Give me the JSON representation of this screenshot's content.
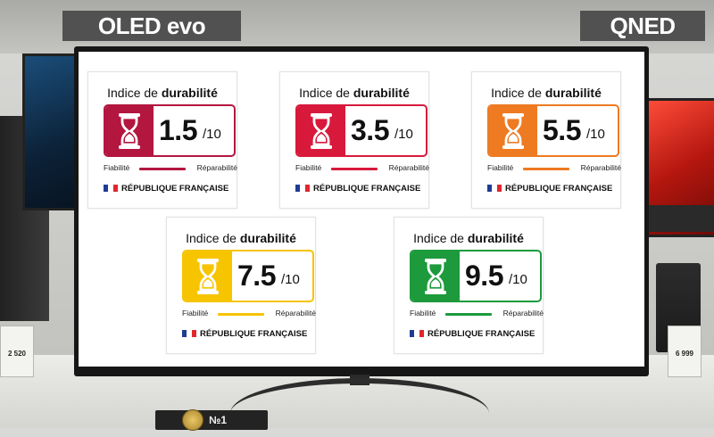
{
  "store": {
    "sign_left": "OLED evo",
    "sign_right": "QNED",
    "price_left": "2 520",
    "price_right": "6 999",
    "badge": "№1"
  },
  "labels": [
    {
      "title_prefix": "Indice de ",
      "title_bold": "durabilité",
      "score": "1.5",
      "scale": "/10",
      "color": "#b3163f",
      "left_text": "Fiabilité",
      "right_text": "Réparabilité",
      "footer": "RÉPUBLIQUE FRANÇAISE"
    },
    {
      "title_prefix": "Indice de ",
      "title_bold": "durabilité",
      "score": "3.5",
      "scale": "/10",
      "color": "#d8193c",
      "left_text": "Fiabilité",
      "right_text": "Réparabilité",
      "footer": "RÉPUBLIQUE FRANÇAISE"
    },
    {
      "title_prefix": "Indice de ",
      "title_bold": "durabilité",
      "score": "5.5",
      "scale": "/10",
      "color": "#ee7a22",
      "left_text": "Fiabilité",
      "right_text": "Réparabilité",
      "footer": "RÉPUBLIQUE FRANÇAISE"
    },
    {
      "title_prefix": "Indice de ",
      "title_bold": "durabilité",
      "score": "7.5",
      "scale": "/10",
      "color": "#f7c400",
      "left_text": "Fiabilité",
      "right_text": "Réparabilité",
      "footer": "RÉPUBLIQUE FRANÇAISE"
    },
    {
      "title_prefix": "Indice de ",
      "title_bold": "durabilité",
      "score": "9.5",
      "scale": "/10",
      "color": "#1d9a3c",
      "left_text": "Fiabilité",
      "right_text": "Réparabilité",
      "footer": "RÉPUBLIQUE FRANÇAISE"
    }
  ],
  "icons": {
    "hourglass": "hourglass-icon",
    "flag": "french-flag-icon"
  },
  "flag_colors": [
    "#1f3c94",
    "#ffffff",
    "#e1262c"
  ]
}
